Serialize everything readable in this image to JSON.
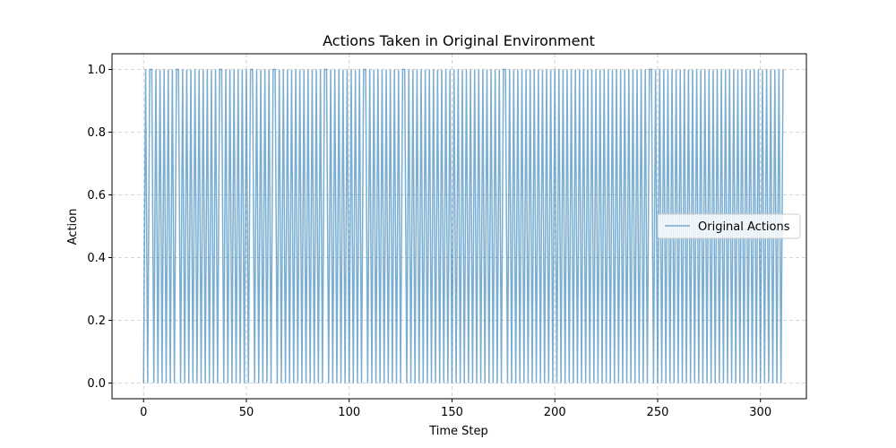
{
  "chart_data": {
    "type": "line",
    "title": "Actions Taken in Original Environment",
    "xlabel": "Time Step",
    "ylabel": "Action",
    "xlim": [
      -15.35,
      322.35
    ],
    "ylim": [
      -0.05,
      1.05
    ],
    "xticks": [
      0,
      50,
      100,
      150,
      200,
      250,
      300
    ],
    "yticks": [
      0.0,
      0.2,
      0.4,
      0.6,
      0.8,
      1.0
    ],
    "xtick_labels": [
      "0",
      "50",
      "100",
      "150",
      "200",
      "250",
      "300"
    ],
    "ytick_labels": [
      "0.0",
      "0.2",
      "0.4",
      "0.6",
      "0.8",
      "1.0"
    ],
    "grid": true,
    "legend_position": "center-right",
    "series": [
      {
        "name": "Original Actions",
        "color": "#1f77b4",
        "alpha": 0.6,
        "x_start": 0,
        "x_step": 1,
        "values": [
          0,
          1,
          0,
          1,
          1,
          0,
          1,
          0,
          1,
          0,
          1,
          0,
          1,
          0,
          1,
          0,
          1,
          1,
          0,
          1,
          0,
          1,
          0,
          1,
          0,
          1,
          0,
          1,
          0,
          1,
          0,
          1,
          0,
          1,
          0,
          1,
          0,
          1,
          1,
          0,
          1,
          0,
          1,
          0,
          1,
          0,
          1,
          0,
          1,
          0,
          1,
          0,
          1,
          1,
          0,
          1,
          0,
          1,
          0,
          1,
          0,
          1,
          0,
          1,
          1,
          0,
          1,
          0,
          1,
          0,
          1,
          0,
          1,
          0,
          1,
          0,
          1,
          0,
          1,
          0,
          1,
          0,
          1,
          0,
          1,
          0,
          1,
          0,
          1,
          1,
          0,
          1,
          0,
          1,
          0,
          1,
          0,
          1,
          0,
          1,
          0,
          1,
          0,
          1,
          0,
          1,
          0,
          1,
          1,
          0,
          1,
          0,
          1,
          0,
          1,
          0,
          1,
          0,
          1,
          0,
          1,
          0,
          1,
          0,
          1,
          0,
          1,
          1,
          0,
          1,
          0,
          1,
          0,
          1,
          0,
          1,
          0,
          1,
          0,
          1,
          0,
          1,
          0,
          1,
          0,
          1,
          0,
          1,
          0,
          1,
          0,
          1,
          0,
          1,
          0,
          1,
          0,
          1,
          0,
          1,
          0,
          1,
          0,
          1,
          0,
          1,
          0,
          1,
          0,
          1,
          0,
          1,
          0,
          1,
          0,
          1,
          1,
          0,
          1,
          0,
          1,
          0,
          1,
          0,
          1,
          0,
          1,
          0,
          1,
          0,
          1,
          0,
          1,
          0,
          1,
          0,
          1,
          0,
          1,
          0,
          1,
          0,
          1,
          0,
          1,
          0,
          1,
          0,
          1,
          0,
          1,
          0,
          1,
          0,
          1,
          0,
          1,
          0,
          1,
          0,
          1,
          0,
          1,
          0,
          1,
          0,
          1,
          0,
          1,
          0,
          1,
          0,
          1,
          0,
          1,
          0,
          1,
          0,
          1,
          0,
          1,
          0,
          1,
          0,
          1,
          0,
          1,
          1,
          0,
          1,
          0,
          1,
          0,
          1,
          0,
          1,
          0,
          1,
          0,
          1,
          0,
          1,
          0,
          1,
          0,
          1,
          0,
          1,
          0,
          1,
          0,
          1,
          0,
          1,
          0,
          1,
          0,
          1,
          0,
          1,
          0,
          1,
          0,
          1,
          0,
          1,
          0,
          1,
          0,
          1,
          0,
          1,
          0,
          1,
          0,
          1,
          0,
          1,
          0,
          1,
          0,
          1,
          0,
          1,
          0,
          1,
          0,
          1,
          0,
          1,
          0,
          1
        ]
      }
    ]
  }
}
